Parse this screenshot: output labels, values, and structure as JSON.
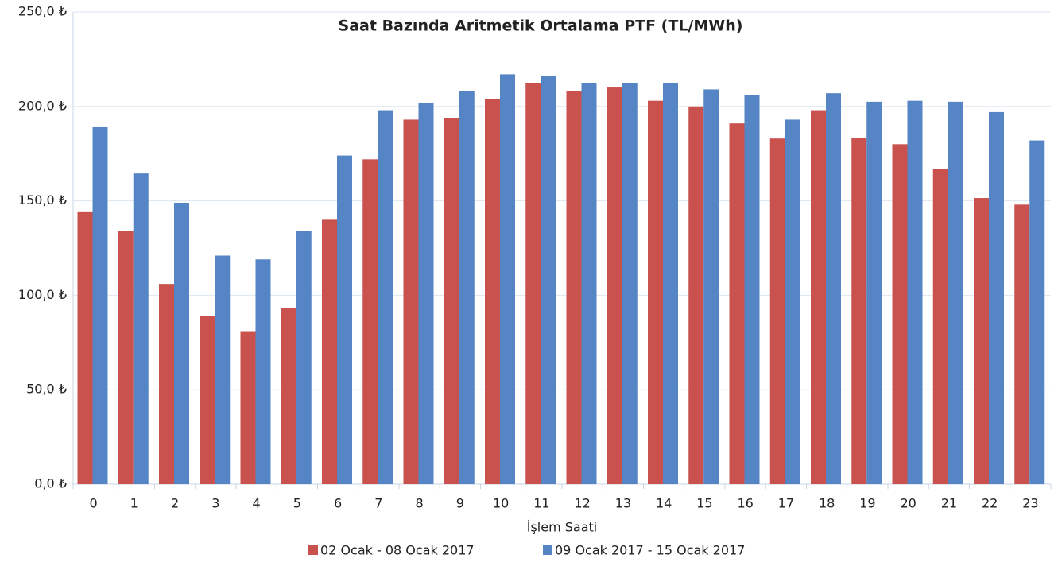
{
  "chart_data": {
    "type": "bar",
    "title": "Saat Bazında Aritmetik Ortalama PTF (TL/MWh)",
    "x_label": "İşlem Saati",
    "categories": [
      "0",
      "1",
      "2",
      "3",
      "4",
      "5",
      "6",
      "7",
      "8",
      "9",
      "10",
      "11",
      "12",
      "13",
      "14",
      "15",
      "16",
      "17",
      "18",
      "19",
      "20",
      "21",
      "22",
      "23"
    ],
    "series": [
      {
        "name": "02 Ocak - 08 Ocak 2017",
        "color": "#c9524f",
        "values": [
          144,
          134,
          106,
          89,
          81,
          93,
          140,
          172,
          193,
          194,
          204,
          212.5,
          208,
          210,
          203,
          200,
          191,
          183,
          198,
          183.5,
          180,
          167,
          151.5,
          148
        ]
      },
      {
        "name": "09 Ocak 2017 - 15 Ocak 2017",
        "color": "#5585c5",
        "values": [
          189,
          164.5,
          149,
          121,
          119,
          134,
          174,
          198,
          202,
          208,
          217,
          216,
          212.5,
          212.5,
          212.5,
          209,
          206,
          193,
          207,
          202.5,
          203,
          202.5,
          197,
          182
        ]
      }
    ],
    "ylim": [
      0,
      250
    ],
    "yticks": [
      {
        "value": 0,
        "label": "0,0 ₺"
      },
      {
        "value": 50,
        "label": "50,0 ₺"
      },
      {
        "value": 100,
        "label": "100,0 ₺"
      },
      {
        "value": 150,
        "label": "150,0 ₺"
      },
      {
        "value": 200,
        "label": "200,0 ₺"
      },
      {
        "value": 250,
        "label": "250,0 ₺"
      }
    ],
    "grid": true,
    "legend": "bottom"
  }
}
